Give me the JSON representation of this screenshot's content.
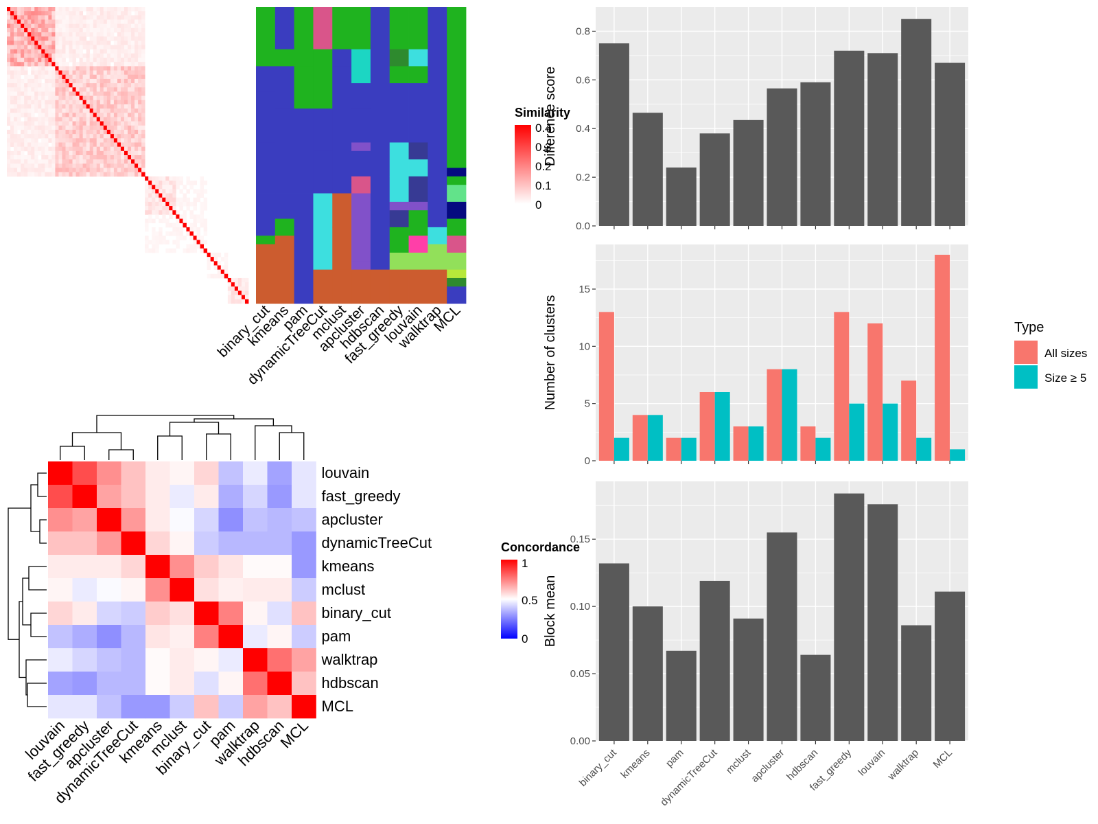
{
  "methods": [
    "binary_cut",
    "kmeans",
    "pam",
    "dynamicTreeCut",
    "mclust",
    "apcluster",
    "hdbscan",
    "fast_greedy",
    "louvain",
    "walktrap",
    "MCL"
  ],
  "colors": {
    "bar": "#595959",
    "panel": "#ebebeb",
    "all_sizes": "#f8766d",
    "size_ge5": "#00bfc4",
    "heat_high": "#ff0000",
    "heat_mid": "#ffffff",
    "heat_low": "#0000ff",
    "cluster_colors": [
      "#1fb31f",
      "#3a3dbf",
      "#d9558a",
      "#cc5c2f",
      "#3ddfdf",
      "#1cd6c3",
      "#8151c9",
      "#2e8a2e",
      "#373a94",
      "#ff3fa8",
      "#92e05a",
      "#62e38a",
      "#050a80",
      "#b7e83a"
    ]
  },
  "similarity_legend": {
    "title": "Similarity",
    "ticks": [
      "0.4",
      "0.3",
      "0.2",
      "0.1",
      "0"
    ]
  },
  "concordance_legend": {
    "title": "Concordance",
    "ticks": [
      "1",
      "0.5",
      "0"
    ]
  },
  "concordance_order": [
    "louvain",
    "fast_greedy",
    "apcluster",
    "dynamicTreeCut",
    "kmeans",
    "mclust",
    "binary_cut",
    "pam",
    "walktrap",
    "hdbscan",
    "MCL"
  ],
  "concordance_matrix": [
    [
      1.0,
      0.85,
      0.72,
      0.62,
      0.54,
      0.52,
      0.58,
      0.38,
      0.46,
      0.32,
      0.45
    ],
    [
      0.85,
      1.0,
      0.68,
      0.62,
      0.54,
      0.46,
      0.54,
      0.34,
      0.42,
      0.3,
      0.45
    ],
    [
      0.72,
      0.68,
      1.0,
      0.7,
      0.54,
      0.49,
      0.42,
      0.28,
      0.38,
      0.36,
      0.38
    ],
    [
      0.62,
      0.62,
      0.7,
      1.0,
      0.58,
      0.52,
      0.4,
      0.36,
      0.36,
      0.36,
      0.3
    ],
    [
      0.54,
      0.54,
      0.54,
      0.58,
      1.0,
      0.72,
      0.6,
      0.55,
      0.51,
      0.51,
      0.3
    ],
    [
      0.52,
      0.46,
      0.49,
      0.52,
      0.72,
      1.0,
      0.56,
      0.53,
      0.54,
      0.54,
      0.4
    ],
    [
      0.58,
      0.54,
      0.42,
      0.4,
      0.6,
      0.56,
      1.0,
      0.75,
      0.52,
      0.44,
      0.62
    ],
    [
      0.38,
      0.34,
      0.28,
      0.36,
      0.55,
      0.53,
      0.75,
      1.0,
      0.46,
      0.52,
      0.4
    ],
    [
      0.46,
      0.42,
      0.38,
      0.36,
      0.51,
      0.54,
      0.52,
      0.46,
      1.0,
      0.78,
      0.68
    ],
    [
      0.32,
      0.3,
      0.36,
      0.36,
      0.51,
      0.54,
      0.44,
      0.52,
      0.78,
      1.0,
      0.62
    ],
    [
      0.45,
      0.45,
      0.38,
      0.3,
      0.3,
      0.4,
      0.62,
      0.4,
      0.68,
      0.62,
      1.0
    ]
  ],
  "chart_data": [
    {
      "type": "bar",
      "categories": [
        "binary_cut",
        "kmeans",
        "pam",
        "dynamicTreeCut",
        "mclust",
        "apcluster",
        "hdbscan",
        "fast_greedy",
        "louvain",
        "walktrap",
        "MCL"
      ],
      "values": [
        0.75,
        0.465,
        0.24,
        0.38,
        0.435,
        0.565,
        0.59,
        0.72,
        0.71,
        0.85,
        0.67
      ],
      "ylabel": "Difference score",
      "yticks": [
        "0.0",
        "0.2",
        "0.4",
        "0.6",
        "0.8"
      ],
      "ylim": [
        0,
        0.9
      ],
      "grid": true
    },
    {
      "type": "bar",
      "categories": [
        "binary_cut",
        "kmeans",
        "pam",
        "dynamicTreeCut",
        "mclust",
        "apcluster",
        "hdbscan",
        "fast_greedy",
        "louvain",
        "walktrap",
        "MCL"
      ],
      "series": [
        {
          "name": "All sizes",
          "values": [
            13,
            4,
            2,
            6,
            3,
            8,
            3,
            13,
            12,
            7,
            18
          ]
        },
        {
          "name": "Size ≥ 5",
          "values": [
            2,
            4,
            2,
            6,
            3,
            8,
            2,
            5,
            5,
            2,
            1
          ]
        }
      ],
      "ylabel": "Number of clusters",
      "yticks": [
        "0",
        "5",
        "10",
        "15"
      ],
      "ylim": [
        0,
        18.9
      ],
      "legend_title": "Type",
      "legend_position": "right",
      "grid": true
    },
    {
      "type": "bar",
      "categories": [
        "binary_cut",
        "kmeans",
        "pam",
        "dynamicTreeCut",
        "mclust",
        "apcluster",
        "hdbscan",
        "fast_greedy",
        "louvain",
        "walktrap",
        "MCL"
      ],
      "values": [
        0.132,
        0.1,
        0.067,
        0.119,
        0.091,
        0.155,
        0.064,
        0.184,
        0.176,
        0.086,
        0.111
      ],
      "ylabel": "Block mean",
      "yticks": [
        "0.00",
        "0.05",
        "0.10",
        "0.15"
      ],
      "ylim": [
        0,
        0.193
      ],
      "grid": true
    }
  ]
}
